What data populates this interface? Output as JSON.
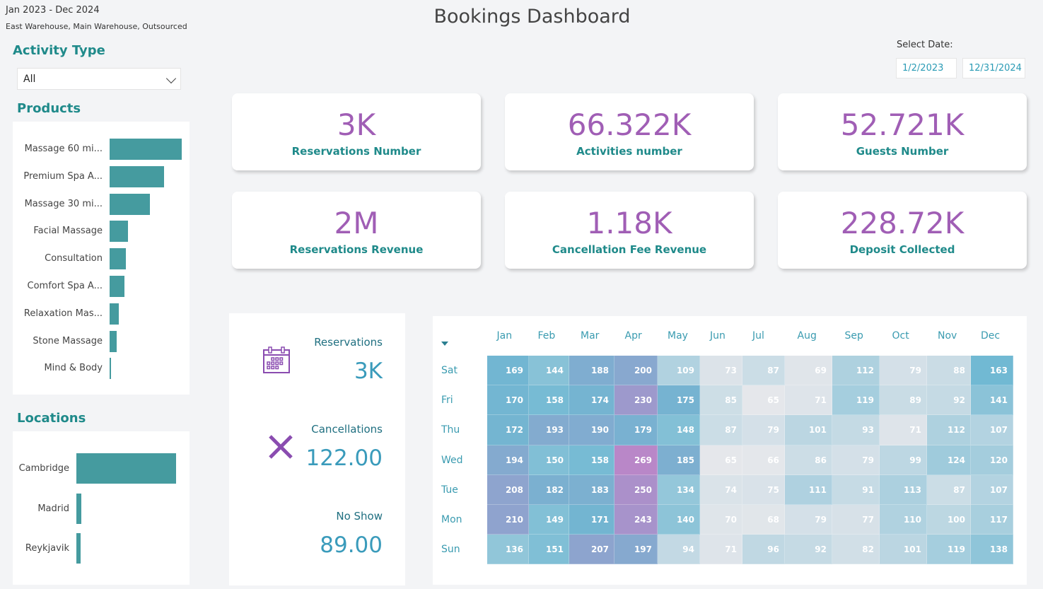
{
  "header": {
    "date_range": "Jan 2023 - Dec 2024",
    "warehouses": "East Warehouse, Main Warehouse, Outsourced",
    "title": "Bookings Dashboard"
  },
  "activity_type": {
    "title": "Activity Type",
    "selected": "All"
  },
  "products": {
    "title": "Products",
    "items": [
      {
        "label": "Massage 60 mi...",
        "relative": 100
      },
      {
        "label": "Premium Spa A...",
        "relative": 75
      },
      {
        "label": "Massage 30 mi...",
        "relative": 56
      },
      {
        "label": "Facial Massage",
        "relative": 25
      },
      {
        "label": "Consultation",
        "relative": 23
      },
      {
        "label": "Comfort Spa A...",
        "relative": 21
      },
      {
        "label": "Relaxation Mas...",
        "relative": 13
      },
      {
        "label": "Stone Massage",
        "relative": 10
      },
      {
        "label": "Mind & Body",
        "relative": 2
      }
    ]
  },
  "locations": {
    "title": "Locations",
    "items": [
      {
        "label": "Cambridge",
        "relative": 100
      },
      {
        "label": "Madrid",
        "relative": 5
      },
      {
        "label": "Reykjavik",
        "relative": 4
      }
    ]
  },
  "date_filter": {
    "label": "Select Date:",
    "start": "1/2/2023",
    "end": "12/31/2024"
  },
  "kpis": [
    {
      "value": "3K",
      "label": "Reservations Number"
    },
    {
      "value": "66.322K",
      "label": "Activities number"
    },
    {
      "value": "52.721K",
      "label": "Guests Number"
    },
    {
      "value": "2M",
      "label": "Reservations Revenue"
    },
    {
      "value": "1.18K",
      "label": "Cancellation Fee Revenue"
    },
    {
      "value": "228.72K",
      "label": "Deposit Collected"
    }
  ],
  "summary": [
    {
      "label": "Reservations",
      "value": "3K",
      "icon": "calendar-icon"
    },
    {
      "label": "Cancellations",
      "value": "122.00",
      "icon": "x-icon"
    },
    {
      "label": "No Show",
      "value": "89.00",
      "icon": "moon-icon"
    }
  ],
  "colors": {
    "low": "#e5e7eb",
    "mid": "#6fb8d2",
    "high": "#b987c8",
    "kpi_value": "#a05eb5",
    "teal": "#1f8a8a",
    "bar": "#459b9f"
  },
  "chart_data": {
    "type": "heatmap",
    "columns": [
      "Jan",
      "Feb",
      "Mar",
      "Apr",
      "May",
      "Jun",
      "Jul",
      "Aug",
      "Sep",
      "Oct",
      "Nov",
      "Dec"
    ],
    "rows": [
      "Sat",
      "Fri",
      "Thu",
      "Wed",
      "Tue",
      "Mon",
      "Sun"
    ],
    "values": [
      [
        169,
        144,
        188,
        200,
        109,
        73,
        87,
        69,
        112,
        79,
        88,
        163
      ],
      [
        170,
        158,
        174,
        230,
        175,
        85,
        65,
        71,
        119,
        89,
        92,
        141
      ],
      [
        172,
        193,
        190,
        179,
        148,
        87,
        79,
        101,
        93,
        71,
        112,
        107
      ],
      [
        194,
        150,
        158,
        269,
        185,
        65,
        66,
        86,
        79,
        99,
        124,
        120
      ],
      [
        208,
        182,
        183,
        250,
        134,
        74,
        75,
        111,
        91,
        113,
        87,
        107
      ],
      [
        210,
        149,
        171,
        243,
        140,
        70,
        68,
        79,
        77,
        110,
        100,
        117
      ],
      [
        136,
        151,
        207,
        197,
        94,
        71,
        96,
        92,
        82,
        101,
        119,
        138
      ]
    ],
    "range": [
      65,
      269
    ]
  }
}
